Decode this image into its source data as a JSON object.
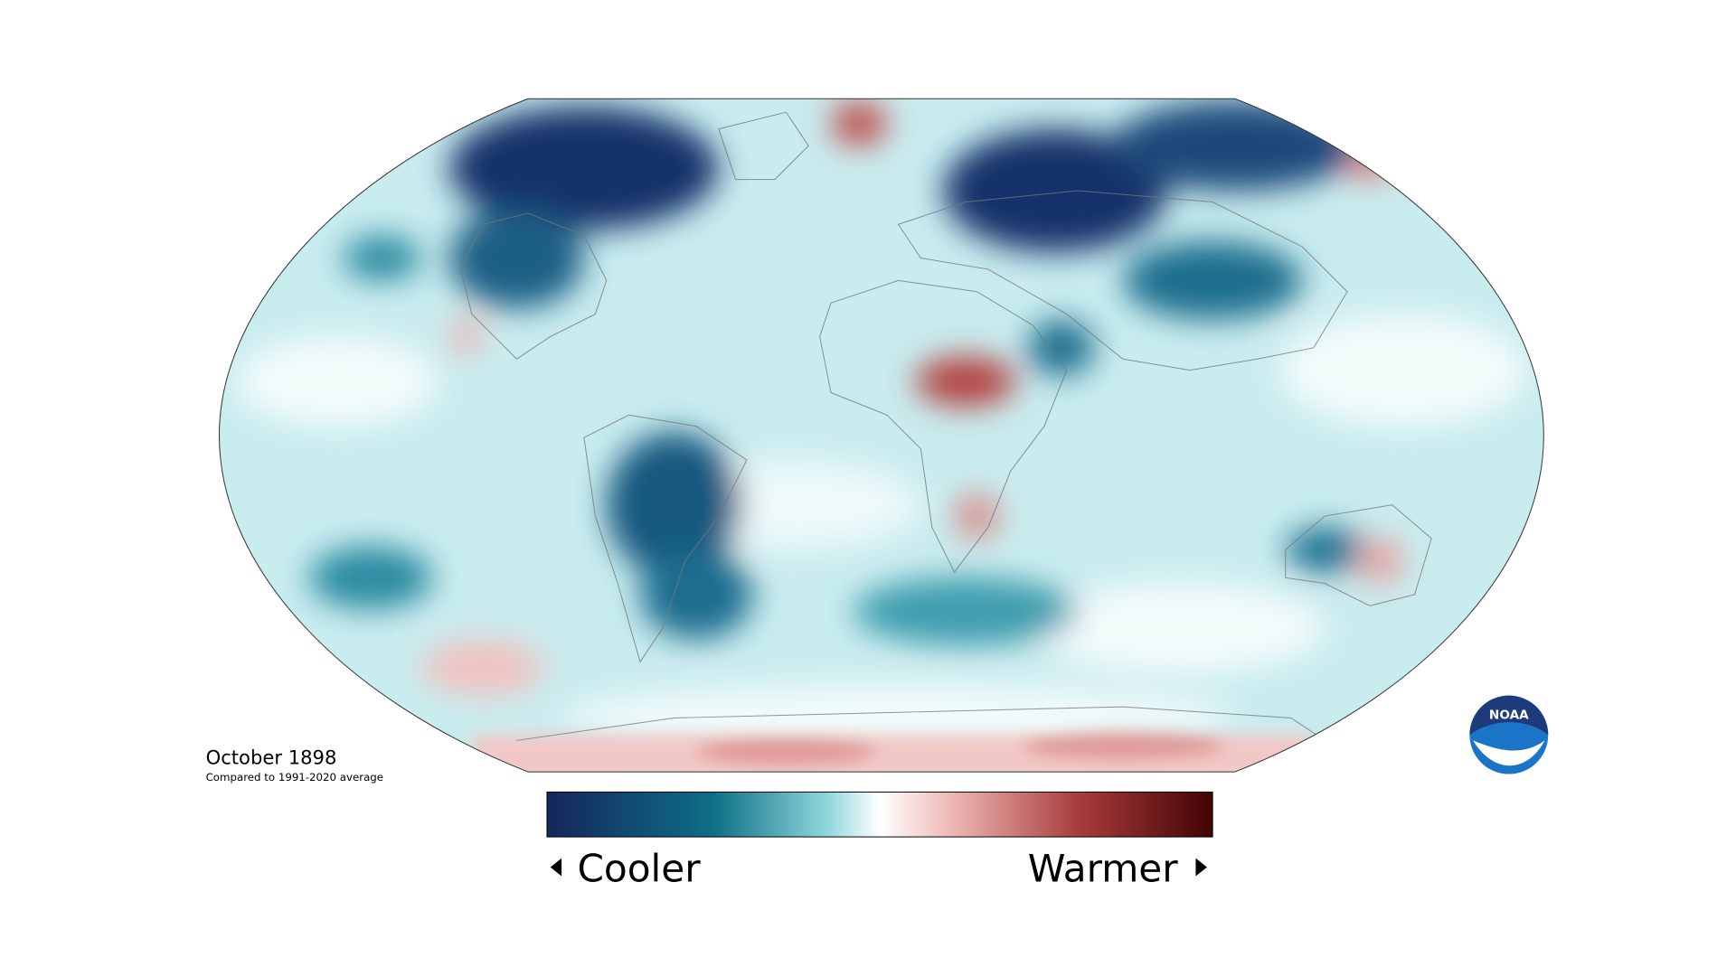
{
  "title": "October 1898",
  "subtitle": "Compared to 1991-2020 average",
  "legend": {
    "low_label": "Cooler",
    "high_label": "Warmer"
  },
  "logo": {
    "text": "NOAA"
  }
}
